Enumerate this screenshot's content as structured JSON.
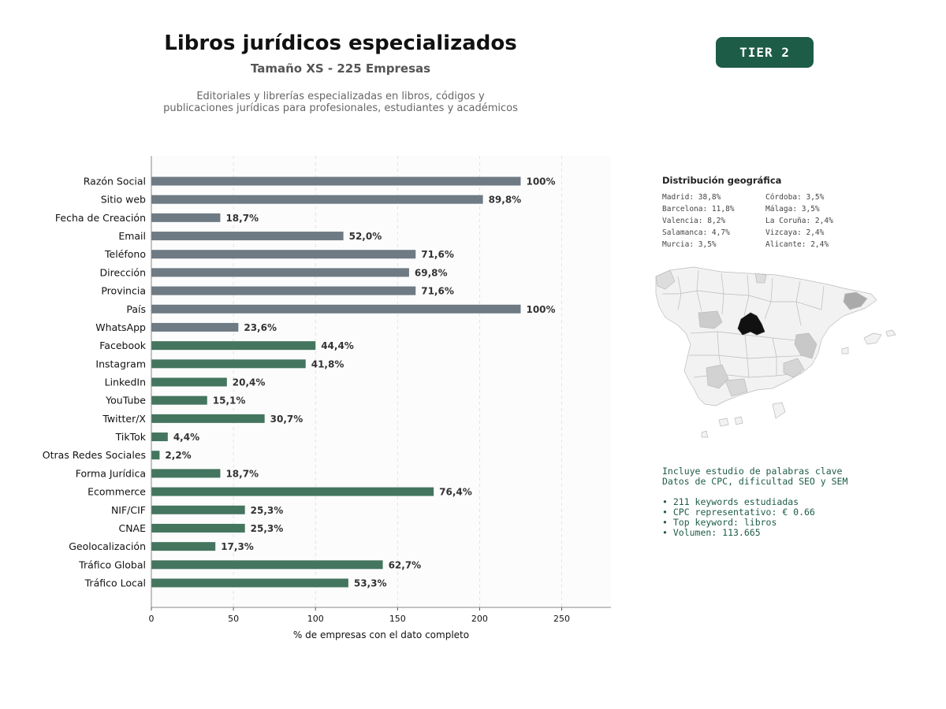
{
  "header": {
    "title": "Libros jurídicos especializados",
    "subtitle": "Tamaño XS - 225 Empresas",
    "description_line1": "Editoriales y librerías especializadas en libros, códigos y",
    "description_line2": "publicaciones jurídicas para profesionales, estudiantes y académicos"
  },
  "badge": {
    "label": "TIER 2",
    "color": "#1d5c46"
  },
  "chart_data": {
    "type": "bar",
    "orientation": "horizontal",
    "xlabel": "% de empresas con el dato completo",
    "ylabel": "",
    "xlim": [
      0,
      280
    ],
    "xticks": [
      0,
      50,
      100,
      150,
      200,
      250
    ],
    "grid": "vertical-dashed",
    "colors": {
      "grey": "#6e7a84",
      "green": "#44755f"
    },
    "bars": [
      {
        "category": "Razón Social",
        "value": 225,
        "label": "100%",
        "color": "grey"
      },
      {
        "category": "Sitio web",
        "value": 202,
        "label": "89,8%",
        "color": "grey"
      },
      {
        "category": "Fecha de Creación",
        "value": 42,
        "label": "18,7%",
        "color": "grey"
      },
      {
        "category": "Email",
        "value": 117,
        "label": "52,0%",
        "color": "grey"
      },
      {
        "category": "Teléfono",
        "value": 161,
        "label": "71,6%",
        "color": "grey"
      },
      {
        "category": "Dirección",
        "value": 157,
        "label": "69,8%",
        "color": "grey"
      },
      {
        "category": "Provincia",
        "value": 161,
        "label": "71,6%",
        "color": "grey"
      },
      {
        "category": "País",
        "value": 225,
        "label": "100%",
        "color": "grey"
      },
      {
        "category": "WhatsApp",
        "value": 53,
        "label": "23,6%",
        "color": "grey"
      },
      {
        "category": "Facebook",
        "value": 100,
        "label": "44,4%",
        "color": "green"
      },
      {
        "category": "Instagram",
        "value": 94,
        "label": "41,8%",
        "color": "green"
      },
      {
        "category": "LinkedIn",
        "value": 46,
        "label": "20,4%",
        "color": "green"
      },
      {
        "category": "YouTube",
        "value": 34,
        "label": "15,1%",
        "color": "green"
      },
      {
        "category": "Twitter/X",
        "value": 69,
        "label": "30,7%",
        "color": "green"
      },
      {
        "category": "TikTok",
        "value": 10,
        "label": "4,4%",
        "color": "green"
      },
      {
        "category": "Otras Redes Sociales",
        "value": 5,
        "label": "2,2%",
        "color": "green"
      },
      {
        "category": "Forma Jurídica",
        "value": 42,
        "label": "18,7%",
        "color": "green"
      },
      {
        "category": "Ecommerce",
        "value": 172,
        "label": "76,4%",
        "color": "green"
      },
      {
        "category": "NIF/CIF",
        "value": 57,
        "label": "25,3%",
        "color": "green"
      },
      {
        "category": "CNAE",
        "value": 57,
        "label": "25,3%",
        "color": "green"
      },
      {
        "category": "Geolocalización",
        "value": 39,
        "label": "17,3%",
        "color": "green"
      },
      {
        "category": "Tráfico Global",
        "value": 141,
        "label": "62,7%",
        "color": "green"
      },
      {
        "category": "Tráfico Local",
        "value": 120,
        "label": "53,3%",
        "color": "green"
      }
    ]
  },
  "geo": {
    "title": "Distribución geográfica",
    "items": [
      "Madrid: 38,8%",
      "Córdoba: 3,5%",
      "Barcelona: 11,8%",
      "Málaga: 3,5%",
      "Valencia: 8,2%",
      "La Coruña: 2,4%",
      "Salamanca: 4,7%",
      "Vizcaya: 2,4%",
      "Murcia: 3,5%",
      "Alicante: 2,4%"
    ]
  },
  "keywords": {
    "line1": "Incluye estudio de palabras clave",
    "line2": "Datos de CPC, dificultad SEO y SEM",
    "bullets": [
      "• 211 keywords estudiadas",
      "• CPC representativo: € 0.66",
      "• Top keyword: libros",
      "• Volumen: 113.665"
    ]
  }
}
